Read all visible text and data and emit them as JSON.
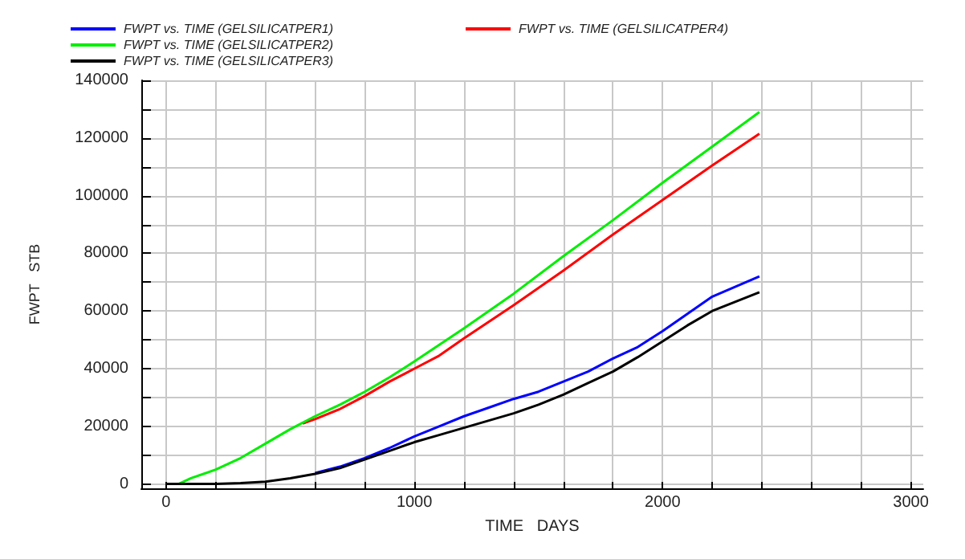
{
  "chart_data": {
    "type": "line",
    "xlabel": "TIME   DAYS",
    "ylabel": "FWPT   STB",
    "xlim": [
      -100,
      3050
    ],
    "xticks": [
      0,
      {
        "value": 200,
        "label": null
      },
      {
        "value": 400,
        "label": null
      },
      {
        "value": 600,
        "label": null
      },
      {
        "value": 800,
        "label": null
      },
      1000,
      {
        "value": 1200,
        "label": null
      },
      {
        "value": 1400,
        "label": null
      },
      {
        "value": 1600,
        "label": null
      },
      {
        "value": 1800,
        "label": null
      },
      2000,
      {
        "value": 2200,
        "label": null
      },
      {
        "value": 2400,
        "label": null
      },
      {
        "value": 2600,
        "label": null
      },
      {
        "value": 2800,
        "label": null
      },
      3000
    ],
    "ylim": [
      -1500,
      140000
    ],
    "yticks": [
      0,
      {
        "value": 10000,
        "label": null
      },
      20000,
      {
        "value": 30000,
        "label": null
      },
      40000,
      {
        "value": 50000,
        "label": null
      },
      60000,
      {
        "value": 70000,
        "label": null
      },
      80000,
      {
        "value": 90000,
        "label": null
      },
      100000,
      {
        "value": 110000,
        "label": null
      },
      120000,
      {
        "value": 130000,
        "label": null
      },
      140000
    ],
    "grid": true,
    "legend": "top left",
    "marker": "none",
    "line_style": "solid",
    "series": [
      {
        "name": "FWPT vs. TIME (GELSILICATPER1)",
        "color": "#0000ff",
        "x": [
          600,
          700,
          800,
          900,
          1000,
          1100,
          1200,
          1300,
          1400,
          1500,
          1600,
          1700,
          1800,
          1900,
          2000,
          2100,
          2200,
          2390
        ],
        "values": [
          3800,
          6000,
          9000,
          12500,
          16500,
          20000,
          23500,
          26500,
          29500,
          32000,
          35500,
          39000,
          43500,
          47500,
          53000,
          59000,
          65000,
          72000
        ]
      },
      {
        "name": "FWPT vs. TIME (GELSILICATPER2)",
        "color": "#00ee00",
        "x": [
          0,
          50,
          100,
          200,
          300,
          400,
          500,
          600,
          700,
          800,
          900,
          1000,
          1200,
          1400,
          1600,
          1800,
          2000,
          2200,
          2390
        ],
        "values": [
          0,
          0,
          2000,
          5000,
          9000,
          14000,
          19000,
          23500,
          27500,
          32000,
          37000,
          42500,
          54000,
          66000,
          79000,
          91500,
          104500,
          117000,
          129000
        ]
      },
      {
        "name": "FWPT vs. TIME (GELSILICATPER3)",
        "color": "#000000",
        "x": [
          0,
          200,
          300,
          400,
          500,
          600,
          700,
          800,
          900,
          1000,
          1100,
          1200,
          1300,
          1400,
          1500,
          1600,
          1700,
          1800,
          1900,
          2000,
          2100,
          2200,
          2390
        ],
        "values": [
          0,
          0,
          300,
          800,
          2000,
          3500,
          5500,
          8500,
          11500,
          14500,
          17000,
          19500,
          22000,
          24500,
          27500,
          31000,
          35000,
          39000,
          44000,
          49500,
          55000,
          60000,
          66500
        ]
      },
      {
        "name": "FWPT vs. TIME (GELSILICATPER4)",
        "color": "#ff0000",
        "x": [
          550,
          600,
          700,
          800,
          900,
          1000,
          1100,
          1200,
          1400,
          1600,
          1800,
          2000,
          2200,
          2390
        ],
        "values": [
          21000,
          22500,
          26000,
          30500,
          35500,
          40000,
          44500,
          50500,
          62000,
          74000,
          86500,
          98500,
          110500,
          121500
        ]
      }
    ]
  }
}
